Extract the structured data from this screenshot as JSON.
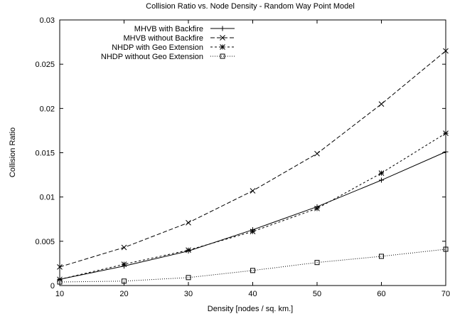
{
  "chart_data": {
    "type": "line",
    "title": "Collision Ratio vs. Node Density - Random Way Point Model",
    "xlabel": "Density [nodes / sq. km.]",
    "ylabel": "Collision Ratio",
    "xlim": [
      10,
      70
    ],
    "ylim": [
      0,
      0.03
    ],
    "x_ticks": [
      10,
      20,
      30,
      40,
      50,
      60,
      70
    ],
    "y_ticks": [
      0,
      0.005,
      0.01,
      0.015,
      0.02,
      0.025,
      0.03
    ],
    "x_tick_labels": [
      "10",
      "20",
      "30",
      "40",
      "50",
      "60",
      "70"
    ],
    "y_tick_labels": [
      "0",
      "0.005",
      "0.01",
      "0.015",
      "0.02",
      "0.025",
      "0.03"
    ],
    "grid": false,
    "legend_position": "top-left",
    "x": [
      10,
      20,
      30,
      40,
      50,
      60,
      70
    ],
    "series": [
      {
        "name": "MHVB with Backfire",
        "marker": "plus",
        "dash": "solid",
        "values": [
          0.0007,
          0.0022,
          0.0039,
          0.0063,
          0.0089,
          0.0119,
          0.0151
        ]
      },
      {
        "name": "MHVB without Backfire",
        "marker": "cross",
        "dash": "dashed",
        "values": [
          0.0021,
          0.0043,
          0.0071,
          0.0107,
          0.0149,
          0.0205,
          0.0265
        ]
      },
      {
        "name": "NHDP with Geo Extension",
        "marker": "star",
        "dash": "short-dash",
        "values": [
          0.0007,
          0.0024,
          0.004,
          0.0061,
          0.0087,
          0.0127,
          0.0172
        ]
      },
      {
        "name": "NHDP without Geo Extension",
        "marker": "square",
        "dash": "dotted",
        "values": [
          0.0004,
          0.0005,
          0.0009,
          0.0017,
          0.0026,
          0.0033,
          0.0041
        ]
      }
    ]
  }
}
